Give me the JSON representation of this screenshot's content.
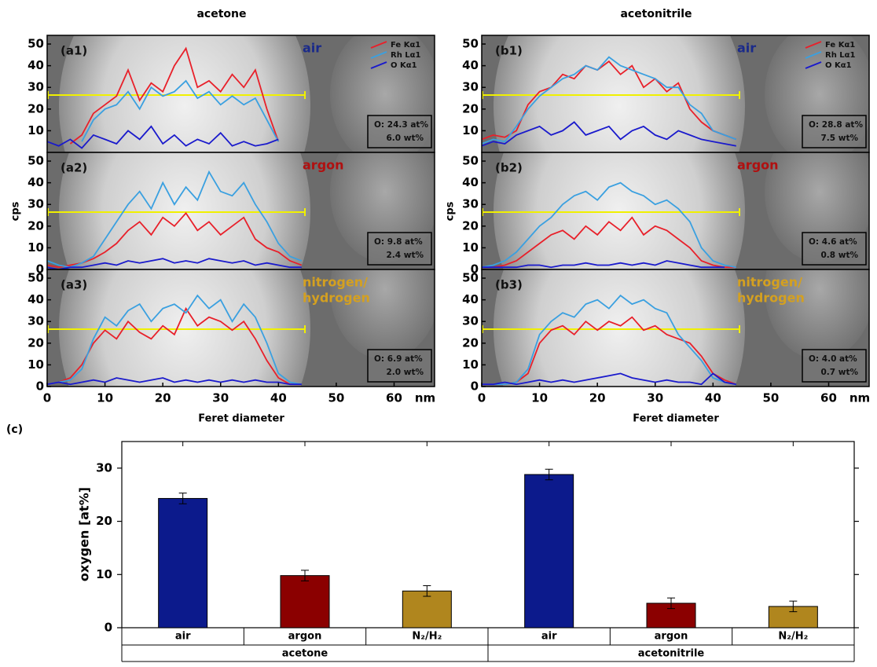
{
  "chart_data": [
    {
      "type": "line",
      "title": "acetone",
      "panel_label": "(a1)",
      "condition": [
        "air"
      ],
      "condition_color": "#1a2a8a",
      "annotation": [
        "O:  24.3 at%",
        "6.0 wt%"
      ],
      "x": [
        0,
        2,
        4,
        6,
        8,
        10,
        12,
        14,
        16,
        18,
        20,
        22,
        24,
        26,
        28,
        30,
        32,
        34,
        36,
        38,
        40,
        42,
        44
      ],
      "xlim": [
        0,
        67
      ],
      "ylim": [
        0,
        54
      ],
      "yticks": [
        10,
        20,
        30,
        40,
        50
      ],
      "series": [
        {
          "name": "Fe Kα1",
          "color": "#e8202a",
          "values": [
            null,
            null,
            4,
            8,
            18,
            22,
            26,
            38,
            24,
            32,
            28,
            40,
            48,
            30,
            33,
            28,
            36,
            30,
            38,
            20,
            5,
            null,
            null
          ]
        },
        {
          "name": "Rh Lα1",
          "color": "#3aa0e0",
          "values": [
            null,
            null,
            null,
            5,
            15,
            20,
            22,
            28,
            20,
            30,
            26,
            28,
            33,
            25,
            28,
            22,
            26,
            22,
            25,
            15,
            5,
            null,
            null
          ]
        },
        {
          "name": "O Kα1",
          "color": "#1a1acc",
          "values": [
            5,
            3,
            6,
            2,
            8,
            6,
            4,
            10,
            6,
            12,
            4,
            8,
            3,
            6,
            4,
            9,
            3,
            5,
            3,
            4,
            6,
            null,
            null
          ]
        }
      ]
    },
    {
      "type": "line",
      "ylabel": "cps",
      "panel_label": "(a2)",
      "condition": [
        "argon"
      ],
      "condition_color": "#b01010",
      "annotation": [
        "O:  9.8 at%",
        "2.4 wt%"
      ],
      "x": [
        0,
        2,
        4,
        6,
        8,
        10,
        12,
        14,
        16,
        18,
        20,
        22,
        24,
        26,
        28,
        30,
        32,
        34,
        36,
        38,
        40,
        42,
        44
      ],
      "xlim": [
        0,
        67
      ],
      "ylim": [
        0,
        54
      ],
      "yticks": [
        0,
        10,
        20,
        30,
        40,
        50
      ],
      "series": [
        {
          "color": "#e8202a",
          "values": [
            2,
            1,
            2,
            3,
            5,
            8,
            12,
            18,
            22,
            16,
            24,
            20,
            26,
            18,
            22,
            16,
            20,
            24,
            14,
            10,
            8,
            4,
            2
          ]
        },
        {
          "color": "#3aa0e0",
          "values": [
            4,
            2,
            1,
            3,
            6,
            14,
            22,
            30,
            36,
            28,
            40,
            30,
            38,
            32,
            45,
            36,
            34,
            40,
            30,
            22,
            12,
            6,
            4
          ]
        },
        {
          "color": "#1a1acc",
          "values": [
            1,
            0,
            1,
            1,
            2,
            3,
            2,
            4,
            3,
            4,
            5,
            3,
            4,
            3,
            5,
            4,
            3,
            4,
            2,
            3,
            2,
            1,
            1
          ]
        }
      ]
    },
    {
      "type": "line",
      "xlabel": "Feret diameter",
      "xunit": "nm",
      "panel_label": "(a3)",
      "condition": [
        "nitrogen/",
        "hydrogen"
      ],
      "condition_color": "#d4a020",
      "annotation": [
        "O:  6.9 at%",
        "2.0 wt%"
      ],
      "x": [
        0,
        2,
        4,
        6,
        8,
        10,
        12,
        14,
        16,
        18,
        20,
        22,
        24,
        26,
        28,
        30,
        32,
        34,
        36,
        38,
        40,
        42,
        44
      ],
      "xlim": [
        0,
        67
      ],
      "ylim": [
        0,
        54
      ],
      "yticks": [
        0,
        10,
        20,
        30,
        40,
        50
      ],
      "xticks": [
        0,
        10,
        20,
        30,
        40,
        50,
        60
      ],
      "series": [
        {
          "color": "#e8202a",
          "values": [
            1,
            2,
            4,
            10,
            20,
            26,
            22,
            30,
            25,
            22,
            28,
            24,
            36,
            28,
            32,
            30,
            26,
            30,
            22,
            12,
            4,
            1,
            1
          ]
        },
        {
          "color": "#3aa0e0",
          "values": [
            1,
            2,
            3,
            8,
            22,
            32,
            28,
            35,
            38,
            30,
            36,
            38,
            34,
            42,
            36,
            40,
            30,
            38,
            32,
            20,
            6,
            2,
            1
          ]
        },
        {
          "color": "#1a1acc",
          "values": [
            1,
            2,
            1,
            2,
            3,
            2,
            4,
            3,
            2,
            3,
            4,
            2,
            3,
            2,
            3,
            2,
            3,
            2,
            3,
            2,
            2,
            1,
            1
          ]
        }
      ]
    },
    {
      "type": "line",
      "title": "acetonitrile",
      "panel_label": "(b1)",
      "condition": [
        "air"
      ],
      "condition_color": "#1a2a8a",
      "annotation": [
        "O:  28.8 at%",
        "7.5 wt%"
      ],
      "x": [
        0,
        2,
        4,
        6,
        8,
        10,
        12,
        14,
        16,
        18,
        20,
        22,
        24,
        26,
        28,
        30,
        32,
        34,
        36,
        38,
        40,
        42,
        44
      ],
      "xlim": [
        0,
        67
      ],
      "ylim": [
        0,
        54
      ],
      "yticks": [
        10,
        20,
        30,
        40,
        50
      ],
      "series": [
        {
          "name": "Fe Kα1",
          "color": "#e8202a",
          "values": [
            6,
            8,
            7,
            10,
            22,
            28,
            30,
            36,
            34,
            40,
            38,
            42,
            36,
            40,
            30,
            34,
            28,
            32,
            20,
            14,
            10,
            8,
            6
          ]
        },
        {
          "name": "Rh Lα1",
          "color": "#3aa0e0",
          "values": [
            4,
            6,
            5,
            12,
            20,
            26,
            30,
            34,
            36,
            40,
            38,
            44,
            40,
            38,
            36,
            34,
            30,
            30,
            22,
            18,
            10,
            8,
            6
          ]
        },
        {
          "name": "O Kα1",
          "color": "#1a1acc",
          "values": [
            3,
            5,
            4,
            8,
            10,
            12,
            8,
            10,
            14,
            8,
            10,
            12,
            6,
            10,
            12,
            8,
            6,
            10,
            8,
            6,
            5,
            4,
            3
          ]
        }
      ]
    },
    {
      "type": "line",
      "ylabel": "cps",
      "panel_label": "(b2)",
      "condition": [
        "argon"
      ],
      "condition_color": "#b01010",
      "annotation": [
        "O:  4.6 at%",
        "0.8 wt%"
      ],
      "x": [
        0,
        2,
        4,
        6,
        8,
        10,
        12,
        14,
        16,
        18,
        20,
        22,
        24,
        26,
        28,
        30,
        32,
        34,
        36,
        38,
        40,
        42,
        44
      ],
      "xlim": [
        0,
        67
      ],
      "ylim": [
        0,
        54
      ],
      "yticks": [
        0,
        10,
        20,
        30,
        40,
        50
      ],
      "series": [
        {
          "color": "#e8202a",
          "values": [
            1,
            1,
            2,
            4,
            8,
            12,
            16,
            18,
            14,
            20,
            16,
            22,
            18,
            24,
            16,
            20,
            18,
            14,
            10,
            4,
            2,
            1,
            1
          ]
        },
        {
          "color": "#3aa0e0",
          "values": [
            1,
            2,
            4,
            8,
            14,
            20,
            24,
            30,
            34,
            36,
            32,
            38,
            40,
            36,
            34,
            30,
            32,
            28,
            22,
            10,
            4,
            2,
            1
          ]
        },
        {
          "color": "#1a1acc",
          "values": [
            1,
            1,
            1,
            1,
            2,
            2,
            1,
            2,
            2,
            3,
            2,
            2,
            3,
            2,
            3,
            2,
            4,
            3,
            2,
            1,
            1,
            1,
            null
          ]
        }
      ]
    },
    {
      "type": "line",
      "xlabel": "Feret diameter",
      "xunit": "nm",
      "panel_label": "(b3)",
      "condition": [
        "nitrogen/",
        "hydrogen"
      ],
      "condition_color": "#d4a020",
      "annotation": [
        "O:  4.0 at%",
        "0.7 wt%"
      ],
      "x": [
        0,
        2,
        4,
        6,
        8,
        10,
        12,
        14,
        16,
        18,
        20,
        22,
        24,
        26,
        28,
        30,
        32,
        34,
        36,
        38,
        40,
        42,
        44
      ],
      "xlim": [
        0,
        67
      ],
      "ylim": [
        0,
        54
      ],
      "yticks": [
        0,
        10,
        20,
        30,
        40,
        50
      ],
      "xticks": [
        0,
        10,
        20,
        30,
        40,
        50,
        60
      ],
      "series": [
        {
          "color": "#e8202a",
          "values": [
            1,
            1,
            1,
            2,
            6,
            20,
            26,
            28,
            24,
            30,
            26,
            30,
            28,
            32,
            26,
            28,
            24,
            22,
            20,
            14,
            6,
            3,
            1
          ]
        },
        {
          "color": "#3aa0e0",
          "values": [
            1,
            1,
            1,
            2,
            8,
            24,
            30,
            34,
            32,
            38,
            40,
            36,
            42,
            38,
            40,
            36,
            34,
            24,
            18,
            12,
            4,
            2,
            1
          ]
        },
        {
          "color": "#1a1acc",
          "values": [
            1,
            1,
            2,
            1,
            2,
            3,
            2,
            3,
            2,
            3,
            4,
            5,
            6,
            4,
            3,
            2,
            3,
            2,
            2,
            1,
            6,
            2,
            1
          ]
        }
      ]
    },
    {
      "type": "bar",
      "panel_label": "(c)",
      "ylabel": "oxygen [at%]",
      "categories": [
        "air",
        "argon",
        "N₂/H₂",
        "air",
        "argon",
        "N₂/H₂"
      ],
      "groups": [
        "acetone",
        "acetonitrile"
      ],
      "values": [
        24.3,
        9.8,
        6.9,
        28.8,
        4.6,
        4.0
      ],
      "errors": [
        1.0,
        1.0,
        1.0,
        1.0,
        1.0,
        1.0
      ],
      "colors": [
        "#0c1a8c",
        "#8b0000",
        "#b0861e",
        "#0c1a8c",
        "#8b0000",
        "#b0861e"
      ],
      "ylim": [
        0,
        35
      ],
      "yticks": [
        0,
        10,
        20,
        30
      ]
    }
  ]
}
